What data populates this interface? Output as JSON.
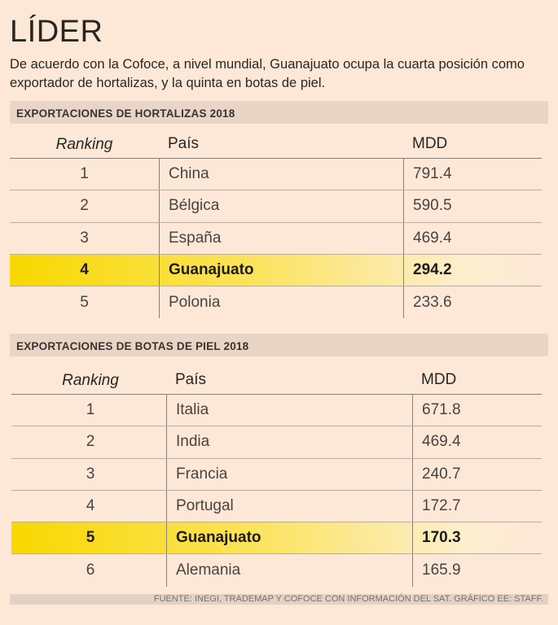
{
  "title": "LÍDER",
  "subtitle": "De acuerdo con la Cofoce, a nivel mundial, Guanajuato ocupa la cuarta posición como exportador de hortalizas, y la quinta en botas de piel.",
  "tables": [
    {
      "heading": "EXPORTACIONES DE HORTALIZAS 2018",
      "columns": [
        "Ranking",
        "País",
        "MDD"
      ],
      "rows": [
        [
          "1",
          "China",
          "791.4"
        ],
        [
          "2",
          "Bélgica",
          "590.5"
        ],
        [
          "3",
          "España",
          "469.4"
        ],
        [
          "4",
          "Guanajuato",
          "294.2"
        ],
        [
          "5",
          "Polonia",
          "233.6"
        ]
      ],
      "highlight_row": 3
    },
    {
      "heading": "EXPORTACIONES DE BOTAS DE PIEL 2018",
      "columns": [
        "Ranking",
        "País",
        "MDD"
      ],
      "rows": [
        [
          "1",
          "Italia",
          "671.8"
        ],
        [
          "2",
          "India",
          "469.4"
        ],
        [
          "3",
          "Francia",
          "240.7"
        ],
        [
          "4",
          "Portugal",
          "172.7"
        ],
        [
          "5",
          "Guanajuato",
          "170.3"
        ],
        [
          "6",
          "Alemania",
          "165.9"
        ]
      ],
      "highlight_row": 4
    }
  ],
  "footer": "FUENTE: INEGI, TRADEMAP Y COFOCE CON INFORMACIÓN DEL SAT. GRÁFICO EE: STAFF.",
  "colors": {
    "background": "#fde8d7",
    "highlight": "#f8d800",
    "section_bar": "#e9d5c6"
  }
}
